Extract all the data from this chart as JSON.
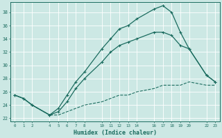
{
  "xlabel": "Humidex (Indice chaleur)",
  "bg_color": "#cce8e4",
  "grid_color": "#ffffff",
  "line_color": "#1a6b5e",
  "x_ticks": [
    0,
    1,
    2,
    4,
    5,
    6,
    7,
    8,
    10,
    11,
    12,
    13,
    14,
    16,
    17,
    18,
    19,
    20,
    22,
    23
  ],
  "curve_max": {
    "x": [
      0,
      1,
      2,
      4,
      5,
      6,
      7,
      8,
      10,
      11,
      12,
      13,
      14,
      16,
      17,
      18,
      19,
      20,
      22,
      23
    ],
    "y": [
      25.5,
      25.0,
      24.0,
      22.5,
      23.5,
      25.5,
      27.5,
      29.0,
      32.5,
      34.0,
      35.5,
      36.0,
      37.0,
      38.5,
      39.0,
      38.0,
      35.0,
      32.5,
      28.5,
      27.5
    ]
  },
  "curve_mid": {
    "x": [
      0,
      1,
      2,
      4,
      5,
      6,
      7,
      8,
      10,
      11,
      12,
      13,
      14,
      16,
      17,
      18,
      19,
      20,
      22,
      23
    ],
    "y": [
      25.5,
      25.0,
      24.0,
      22.5,
      23.0,
      24.5,
      26.5,
      28.0,
      30.5,
      32.0,
      33.0,
      33.5,
      34.0,
      35.0,
      35.0,
      34.5,
      33.0,
      32.5,
      28.5,
      27.5
    ]
  },
  "curve_min": {
    "x": [
      0,
      1,
      2,
      4,
      5,
      6,
      7,
      8,
      10,
      11,
      12,
      13,
      14,
      16,
      17,
      18,
      19,
      20,
      22,
      23
    ],
    "y": [
      25.5,
      25.0,
      24.0,
      22.5,
      22.5,
      23.0,
      23.5,
      24.0,
      24.5,
      25.0,
      25.5,
      25.5,
      26.0,
      26.5,
      27.0,
      27.0,
      27.0,
      27.5,
      27.0,
      27.0
    ]
  },
  "ylim": [
    21.5,
    39.5
  ],
  "xlim": [
    -0.5,
    23.5
  ],
  "yticks": [
    22,
    24,
    26,
    28,
    30,
    32,
    34,
    36,
    38
  ]
}
